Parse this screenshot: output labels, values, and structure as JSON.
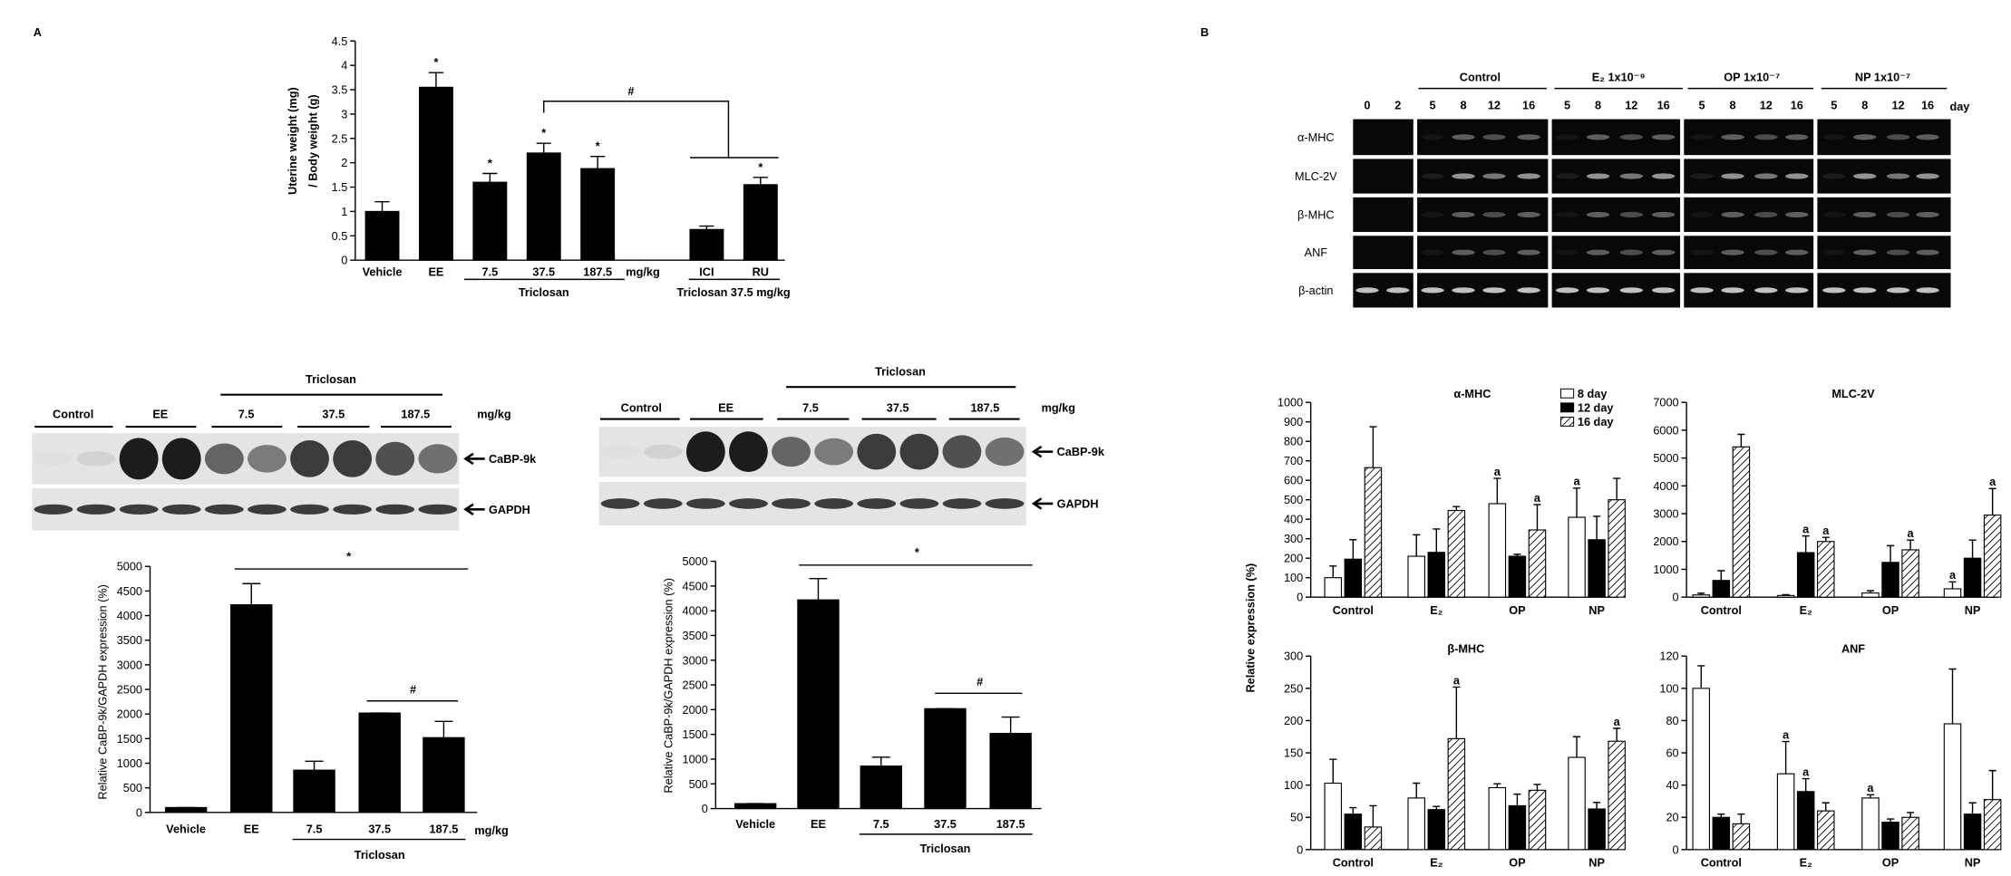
{
  "panel_labels": [
    "A",
    "B"
  ],
  "chart_data": [
    {
      "type": "bar",
      "y_label": [
        "Uterine weight (mg)",
        "/ Body weight (g)"
      ],
      "categories": [
        "Vehicle",
        "EE",
        "7.5",
        "37.5",
        "187.5",
        null,
        "ICI",
        "RU"
      ],
      "values": [
        1.0,
        3.55,
        1.6,
        2.2,
        1.88,
        null,
        0.63,
        1.55
      ],
      "errors": [
        0.2,
        0.3,
        0.18,
        0.2,
        0.25,
        null,
        0.07,
        0.15
      ],
      "markers": [
        null,
        "*",
        "*",
        "*",
        "*",
        null,
        null,
        "*"
      ],
      "color": "#000000",
      "ylim": [
        0,
        4.5
      ],
      "yticks": [
        0,
        0.5,
        1,
        1.5,
        2,
        2.5,
        3,
        3.5,
        4,
        4.5
      ],
      "unit": "mg/kg",
      "groups": [
        "Triclosan",
        "Triclosan 37.5 mg/kg"
      ],
      "bracket_label": "#"
    },
    {
      "type": "bar",
      "y_label": "Relative CaBP-9k/GAPDH expression (%)",
      "categories": [
        "Vehicle",
        "EE",
        "7.5",
        "37.5",
        "187.5"
      ],
      "values": [
        100,
        4220,
        860,
        2020,
        1520
      ],
      "errors": [
        0,
        430,
        180,
        0,
        330
      ],
      "color": "#000000",
      "ylim": [
        0,
        5000
      ],
      "yticks": [
        0,
        500,
        1000,
        1500,
        2000,
        2500,
        3000,
        3500,
        4000,
        4500,
        5000
      ],
      "unit": "mg/kg",
      "group_label": "Triclosan",
      "annotations": [
        "*",
        "#"
      ],
      "blot": {
        "lanes": [
          "Control",
          "EE",
          "7.5",
          "37.5",
          "187.5"
        ],
        "unit": "mg/kg",
        "group_label": "Triclosan",
        "bands": [
          "CaBP-9k",
          "GAPDH"
        ]
      }
    },
    {
      "type": "bar",
      "y_label": "Relative CaBP-9k/GAPDH expression (%)",
      "categories": [
        "Vehicle",
        "EE",
        "7.5",
        "37.5",
        "187.5"
      ],
      "values": [
        100,
        4220,
        860,
        2020,
        1520
      ],
      "errors": [
        0,
        430,
        180,
        0,
        330
      ],
      "color": "#000000",
      "ylim": [
        0,
        5000
      ],
      "yticks": [
        0,
        500,
        1000,
        1500,
        2000,
        2500,
        3000,
        3500,
        4000,
        4500,
        5000
      ],
      "group_label": "Triclosan",
      "annotations": [
        "*",
        "#"
      ],
      "blot": {
        "lanes": [
          "Control",
          "EE",
          "7.5",
          "37.5",
          "187.5"
        ],
        "unit": "mg/kg",
        "group_label": "Triclosan",
        "bands": [
          "CaBP-9k",
          "GAPDH"
        ]
      }
    },
    {
      "type": "grouped_bar",
      "title": "α-MHC",
      "categories": [
        "Control",
        "E₂",
        "OP",
        "NP"
      ],
      "ylim": [
        0,
        1000
      ],
      "yticks": [
        0,
        100,
        200,
        300,
        400,
        500,
        600,
        700,
        800,
        900,
        1000
      ],
      "legend": "upper right",
      "series": [
        {
          "name": "8 day",
          "color": "#ffffff",
          "hatch": false,
          "values": [
            100,
            210,
            480,
            410
          ],
          "errors": [
            60,
            110,
            130,
            150
          ],
          "markers": [
            null,
            null,
            "a",
            "a"
          ]
        },
        {
          "name": "12 day",
          "color": "#000000",
          "hatch": false,
          "values": [
            195,
            230,
            210,
            295
          ],
          "errors": [
            100,
            120,
            10,
            120
          ],
          "markers": [
            null,
            null,
            null,
            null
          ]
        },
        {
          "name": "16 day",
          "color": "#ffffff",
          "hatch": true,
          "values": [
            665,
            445,
            345,
            500
          ],
          "errors": [
            210,
            20,
            130,
            110
          ],
          "markers": [
            null,
            null,
            "a",
            null
          ]
        }
      ]
    },
    {
      "type": "grouped_bar",
      "title": "MLC-2V",
      "categories": [
        "Control",
        "E₂",
        "OP",
        "NP"
      ],
      "ylim": [
        0,
        7000
      ],
      "yticks": [
        0,
        1000,
        2000,
        3000,
        4000,
        5000,
        6000,
        7000
      ],
      "series": [
        {
          "name": "8 day",
          "color": "#ffffff",
          "hatch": false,
          "values": [
            80,
            60,
            150,
            300
          ],
          "errors": [
            60,
            30,
            80,
            250
          ],
          "markers": [
            null,
            null,
            null,
            "a"
          ]
        },
        {
          "name": "12 day",
          "color": "#000000",
          "hatch": false,
          "values": [
            600,
            1600,
            1250,
            1400
          ],
          "errors": [
            350,
            600,
            600,
            650
          ],
          "markers": [
            null,
            "a",
            null,
            null
          ]
        },
        {
          "name": "16 day",
          "color": "#ffffff",
          "hatch": true,
          "values": [
            5400,
            2000,
            1700,
            2950
          ],
          "errors": [
            450,
            150,
            350,
            950
          ],
          "markers": [
            null,
            "a",
            "a",
            "a"
          ]
        }
      ]
    },
    {
      "type": "grouped_bar",
      "title": "β-MHC",
      "categories": [
        "Control",
        "E₂",
        "OP",
        "NP"
      ],
      "ylim": [
        0,
        300
      ],
      "yticks": [
        0,
        50,
        100,
        150,
        200,
        250,
        300
      ],
      "series": [
        {
          "name": "8 day",
          "color": "#ffffff",
          "hatch": false,
          "values": [
            103,
            80,
            96,
            143
          ],
          "errors": [
            37,
            23,
            6,
            32
          ],
          "markers": [
            null,
            null,
            null,
            null
          ]
        },
        {
          "name": "12 day",
          "color": "#000000",
          "hatch": false,
          "values": [
            55,
            62,
            68,
            63
          ],
          "errors": [
            10,
            5,
            18,
            10
          ],
          "markers": [
            null,
            null,
            null,
            null
          ]
        },
        {
          "name": "16 day",
          "color": "#ffffff",
          "hatch": true,
          "values": [
            35,
            172,
            92,
            168
          ],
          "errors": [
            33,
            80,
            9,
            20
          ],
          "markers": [
            null,
            "a",
            null,
            "a"
          ]
        }
      ]
    },
    {
      "type": "grouped_bar",
      "title": "ANF",
      "categories": [
        "Control",
        "E₂",
        "OP",
        "NP"
      ],
      "ylim": [
        0,
        120
      ],
      "yticks": [
        0,
        20,
        40,
        60,
        80,
        100,
        120
      ],
      "series": [
        {
          "name": "8 day",
          "color": "#ffffff",
          "hatch": false,
          "values": [
            100,
            47,
            32,
            78
          ],
          "errors": [
            14,
            20,
            2,
            34
          ],
          "markers": [
            null,
            "a",
            "a",
            null
          ]
        },
        {
          "name": "12 day",
          "color": "#000000",
          "hatch": false,
          "values": [
            20,
            36,
            17,
            22
          ],
          "errors": [
            2,
            8,
            2,
            7
          ],
          "markers": [
            null,
            "a",
            null,
            null
          ]
        },
        {
          "name": "16 day",
          "color": "#ffffff",
          "hatch": true,
          "values": [
            16,
            24,
            20,
            31
          ],
          "errors": [
            6,
            5,
            3,
            18
          ],
          "markers": [
            null,
            null,
            null,
            null
          ]
        }
      ]
    }
  ],
  "gel": {
    "groups": [
      "Control",
      "E₂ 1x10⁻⁹",
      "OP 1x10⁻⁷",
      "NP 1x10⁻⁷"
    ],
    "days": [
      0,
      2,
      5,
      8,
      12,
      16,
      5,
      8,
      12,
      16,
      5,
      8,
      12,
      16,
      5,
      8,
      12,
      16
    ],
    "day_unit": "day",
    "genes": [
      "α-MHC",
      "MLC-2V",
      "β-MHC",
      "ANF",
      "β-actin"
    ]
  },
  "y_label": "Relative expression (%)"
}
